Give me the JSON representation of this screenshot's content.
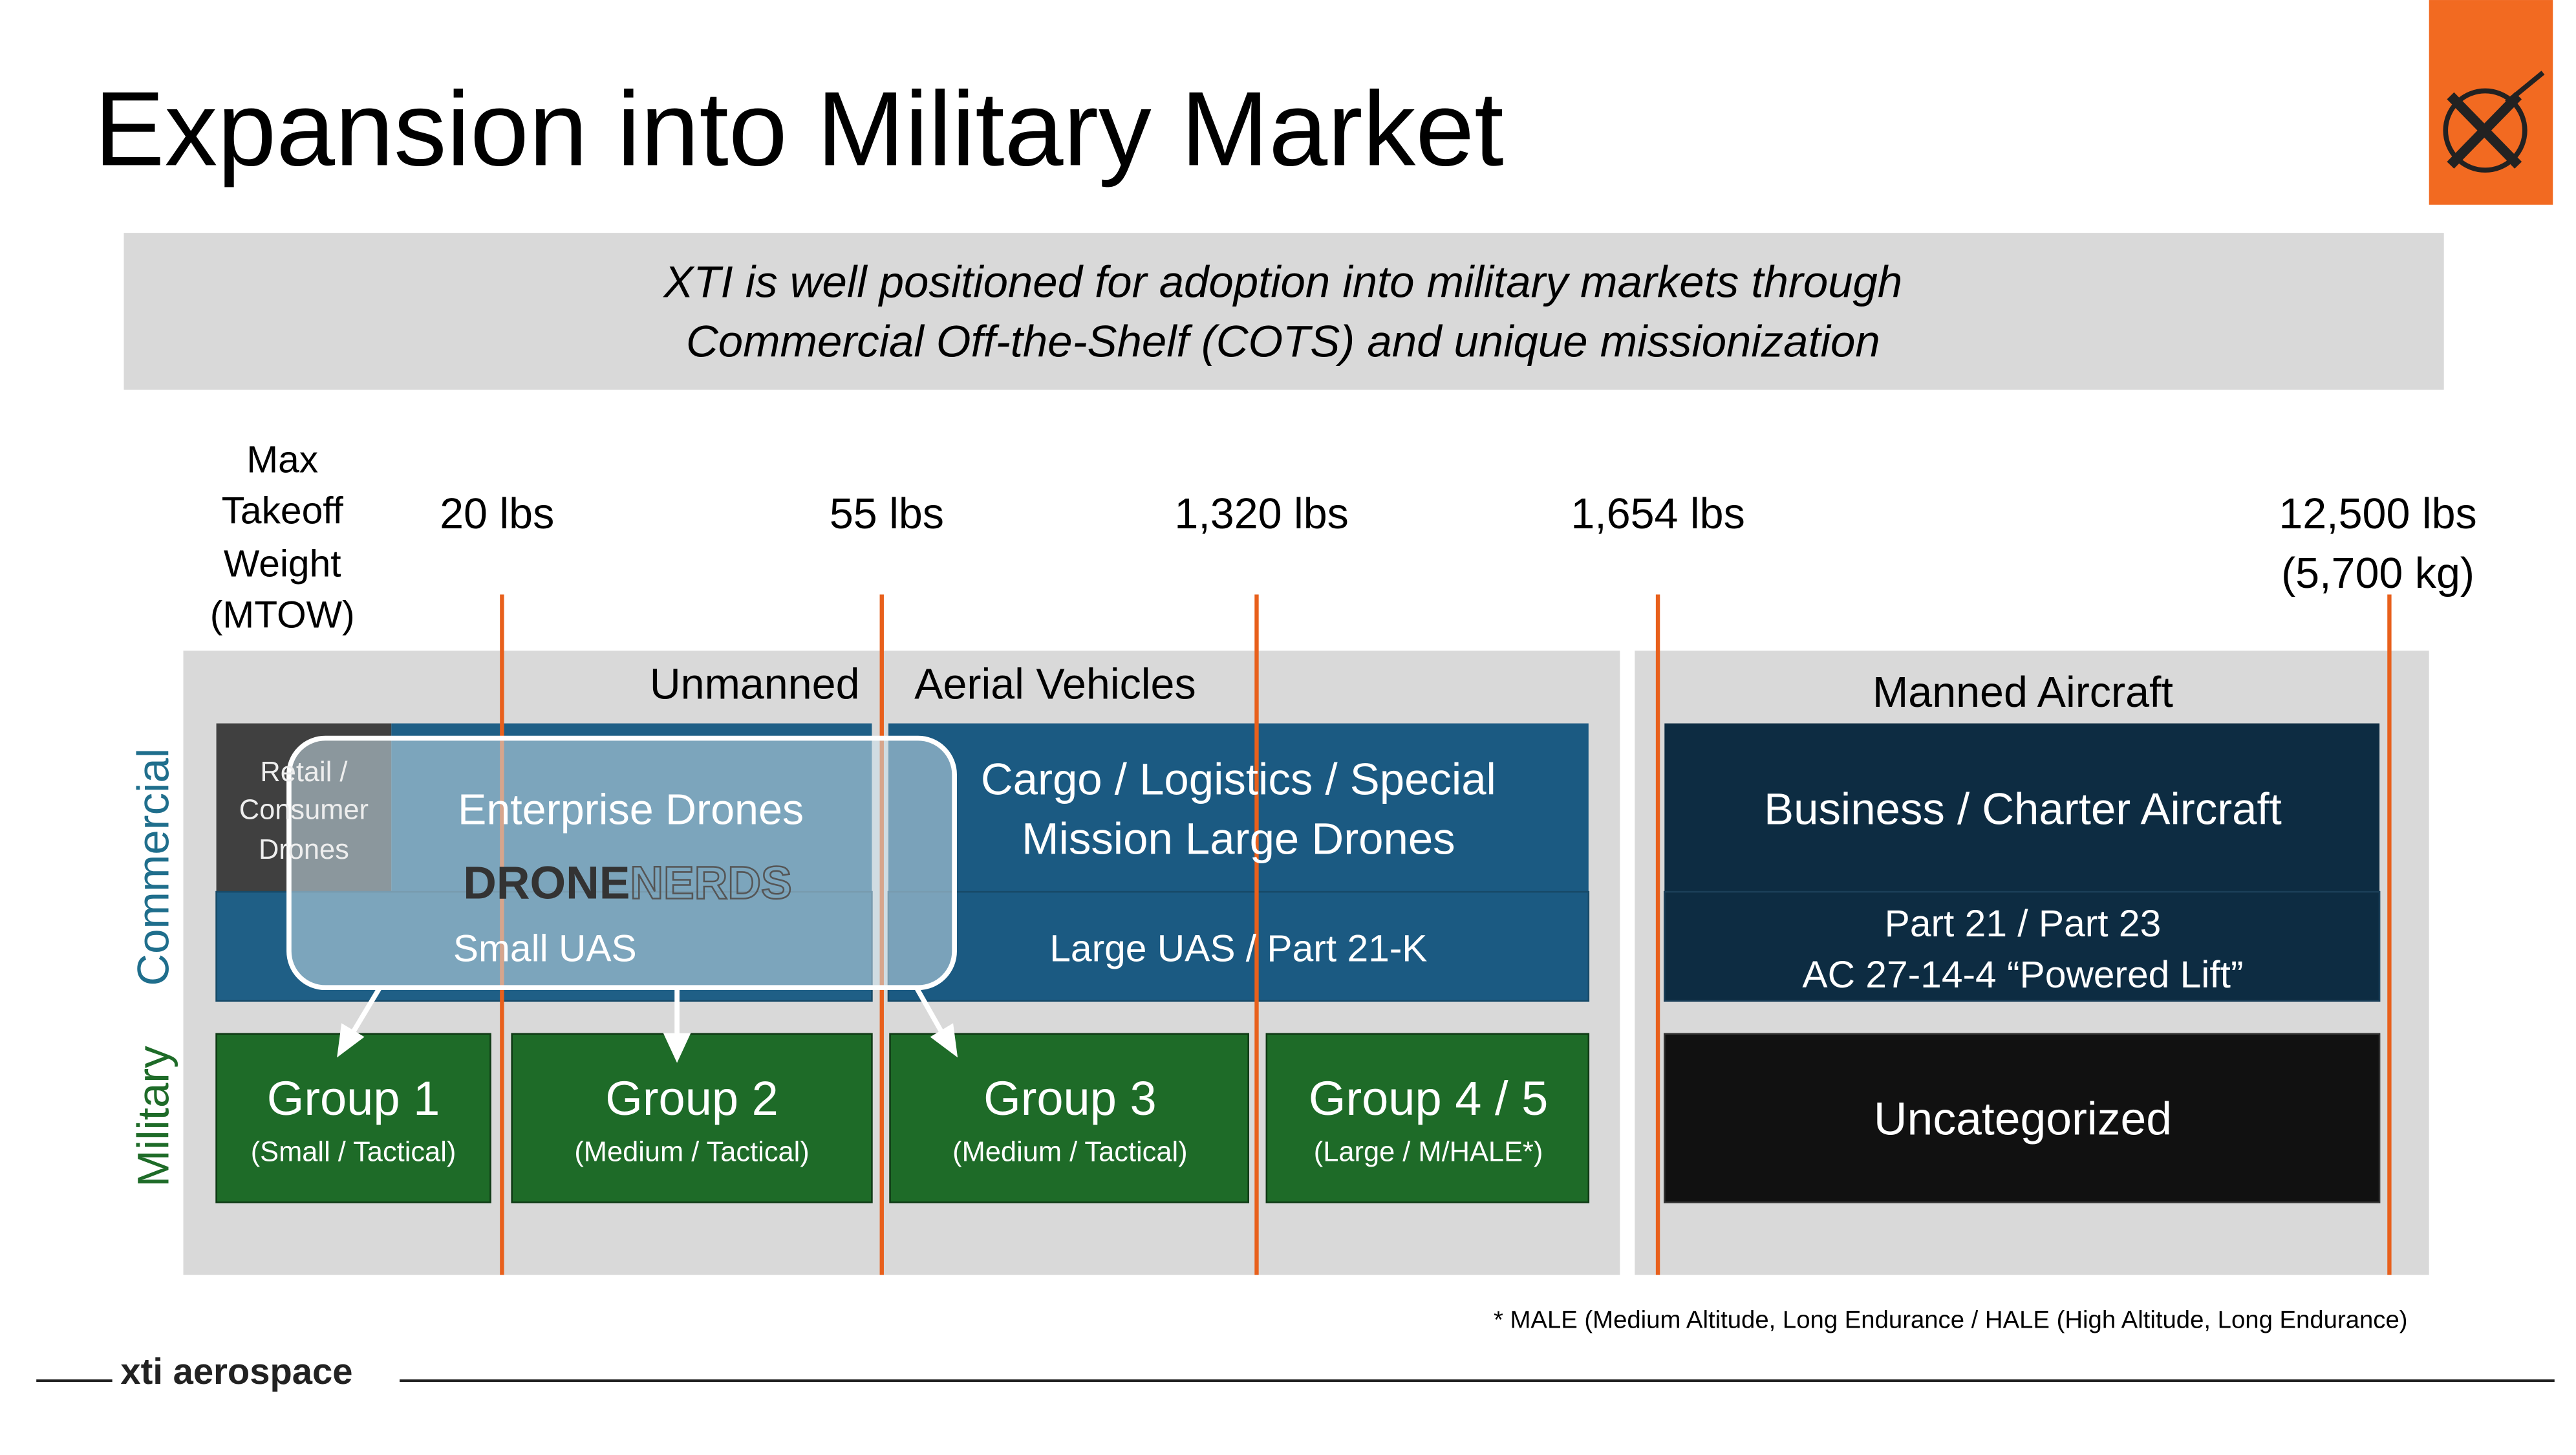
{
  "header": {
    "title": "Expansion into Military Market",
    "logo_text": "xti aerospace"
  },
  "banner": {
    "lines": [
      "XTI is well positioned for adoption into military markets through",
      "Commercial Off-the-Shelf (COTS) and unique missionization"
    ]
  },
  "mtow": {
    "label_lines": [
      "Max",
      "Takeoff",
      "Weight",
      "(MTOW)"
    ],
    "weights": [
      "20 lbs",
      "55 lbs",
      "1,320 lbs",
      "1,654 lbs"
    ],
    "max_weight_lines": [
      "12,500 lbs",
      "(5,700 kg)"
    ]
  },
  "sections": {
    "unmanned": [
      "Unmanned",
      "Aerial Vehicles"
    ],
    "manned": "Manned Aircraft"
  },
  "rows": {
    "commercial": "Commercial",
    "military": "Military"
  },
  "commercial": {
    "retail_lines": [
      "Retail /",
      "Consumer",
      "Drones"
    ],
    "enterprise": "Enterprise Drones",
    "partner": [
      "DRONE",
      "NERDS"
    ],
    "small_uas": "Small UAS",
    "cargo_lines": [
      "Cargo / Logistics / Special",
      "Mission  Large Drones"
    ],
    "large_uas": "Large UAS / Part 21-K",
    "business": "Business / Charter Aircraft",
    "part_lines": [
      "Part 21 / Part 23",
      "AC 27-14-4 “Powered Lift”"
    ]
  },
  "military": {
    "groups": [
      {
        "title": "Group 1",
        "subtitle": "(Small / Tactical)"
      },
      {
        "title": "Group 2",
        "subtitle": "(Medium / Tactical)"
      },
      {
        "title": "Group 3",
        "subtitle": "(Medium / Tactical)"
      },
      {
        "title": "Group 4 / 5",
        "subtitle": "(Large / M/HALE*)"
      }
    ],
    "uncategorized": "Uncategorized"
  },
  "footnote": "* MALE (Medium Altitude, Long Endurance / HALE (High Altitude, Long Endurance)"
}
